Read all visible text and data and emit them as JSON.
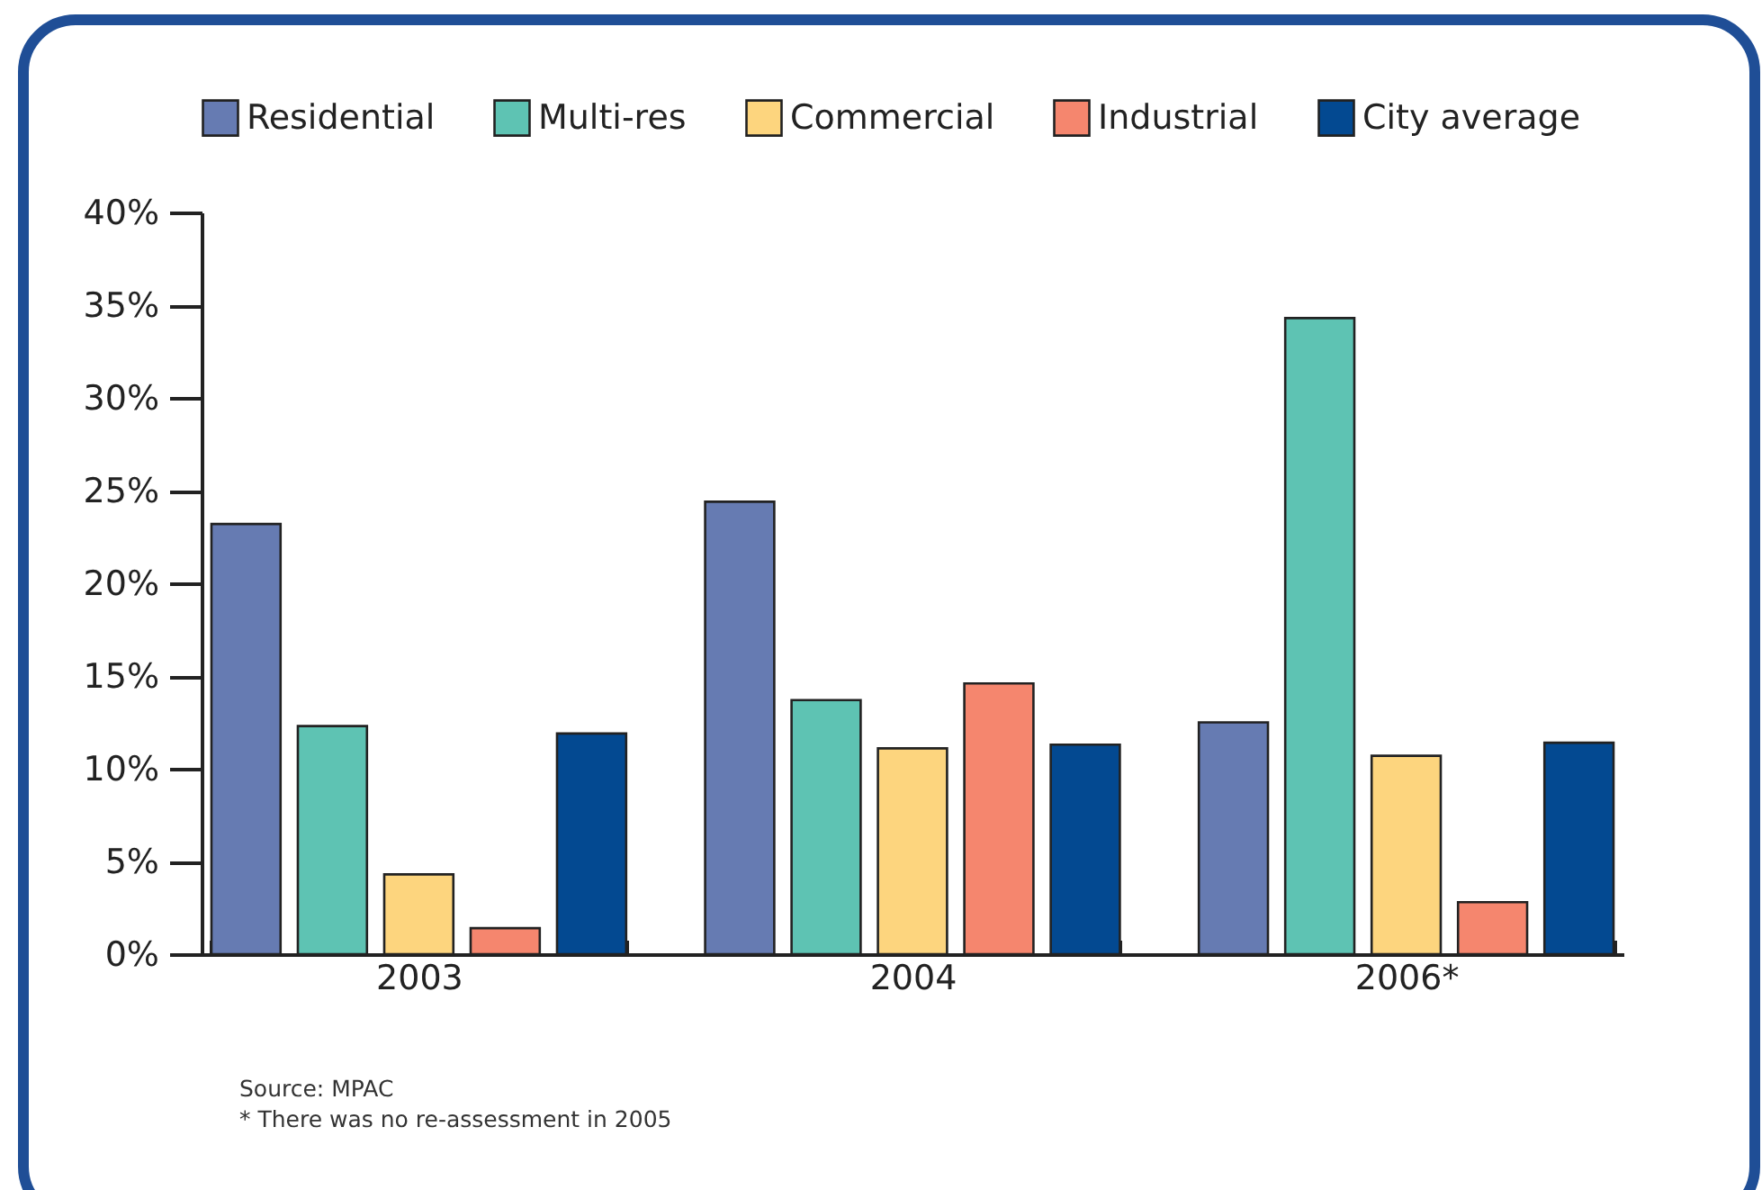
{
  "chart_data": {
    "type": "bar",
    "categories": [
      "2003",
      "2004",
      "2006*"
    ],
    "series": [
      {
        "name": "Residential",
        "color": "#667bb2",
        "values": [
          23.2,
          24.4,
          12.5
        ]
      },
      {
        "name": "Multi-res",
        "color": "#5ec3b3",
        "values": [
          12.3,
          13.7,
          34.3
        ]
      },
      {
        "name": "Commercial",
        "color": "#fdd57e",
        "values": [
          4.3,
          11.1,
          10.7
        ]
      },
      {
        "name": "Industrial",
        "color": "#f5866e",
        "values": [
          1.4,
          14.6,
          2.8
        ]
      },
      {
        "name": "City average",
        "color": "#034991",
        "values": [
          11.9,
          11.3,
          11.4
        ]
      }
    ],
    "ylim": [
      0,
      40
    ],
    "yticks": [
      {
        "value": 0,
        "label": "0%"
      },
      {
        "value": 5,
        "label": "5%"
      },
      {
        "value": 10,
        "label": "10%"
      },
      {
        "value": 15,
        "label": "15%"
      },
      {
        "value": 20,
        "label": "20%"
      },
      {
        "value": 25,
        "label": "25%"
      },
      {
        "value": 30,
        "label": "30%"
      },
      {
        "value": 35,
        "label": "35%"
      },
      {
        "value": 40,
        "label": "40%"
      }
    ],
    "grid": false,
    "legend": "top",
    "annotations": [
      "Source: MPAC",
      "* There was no re-assessment in 2005"
    ]
  }
}
